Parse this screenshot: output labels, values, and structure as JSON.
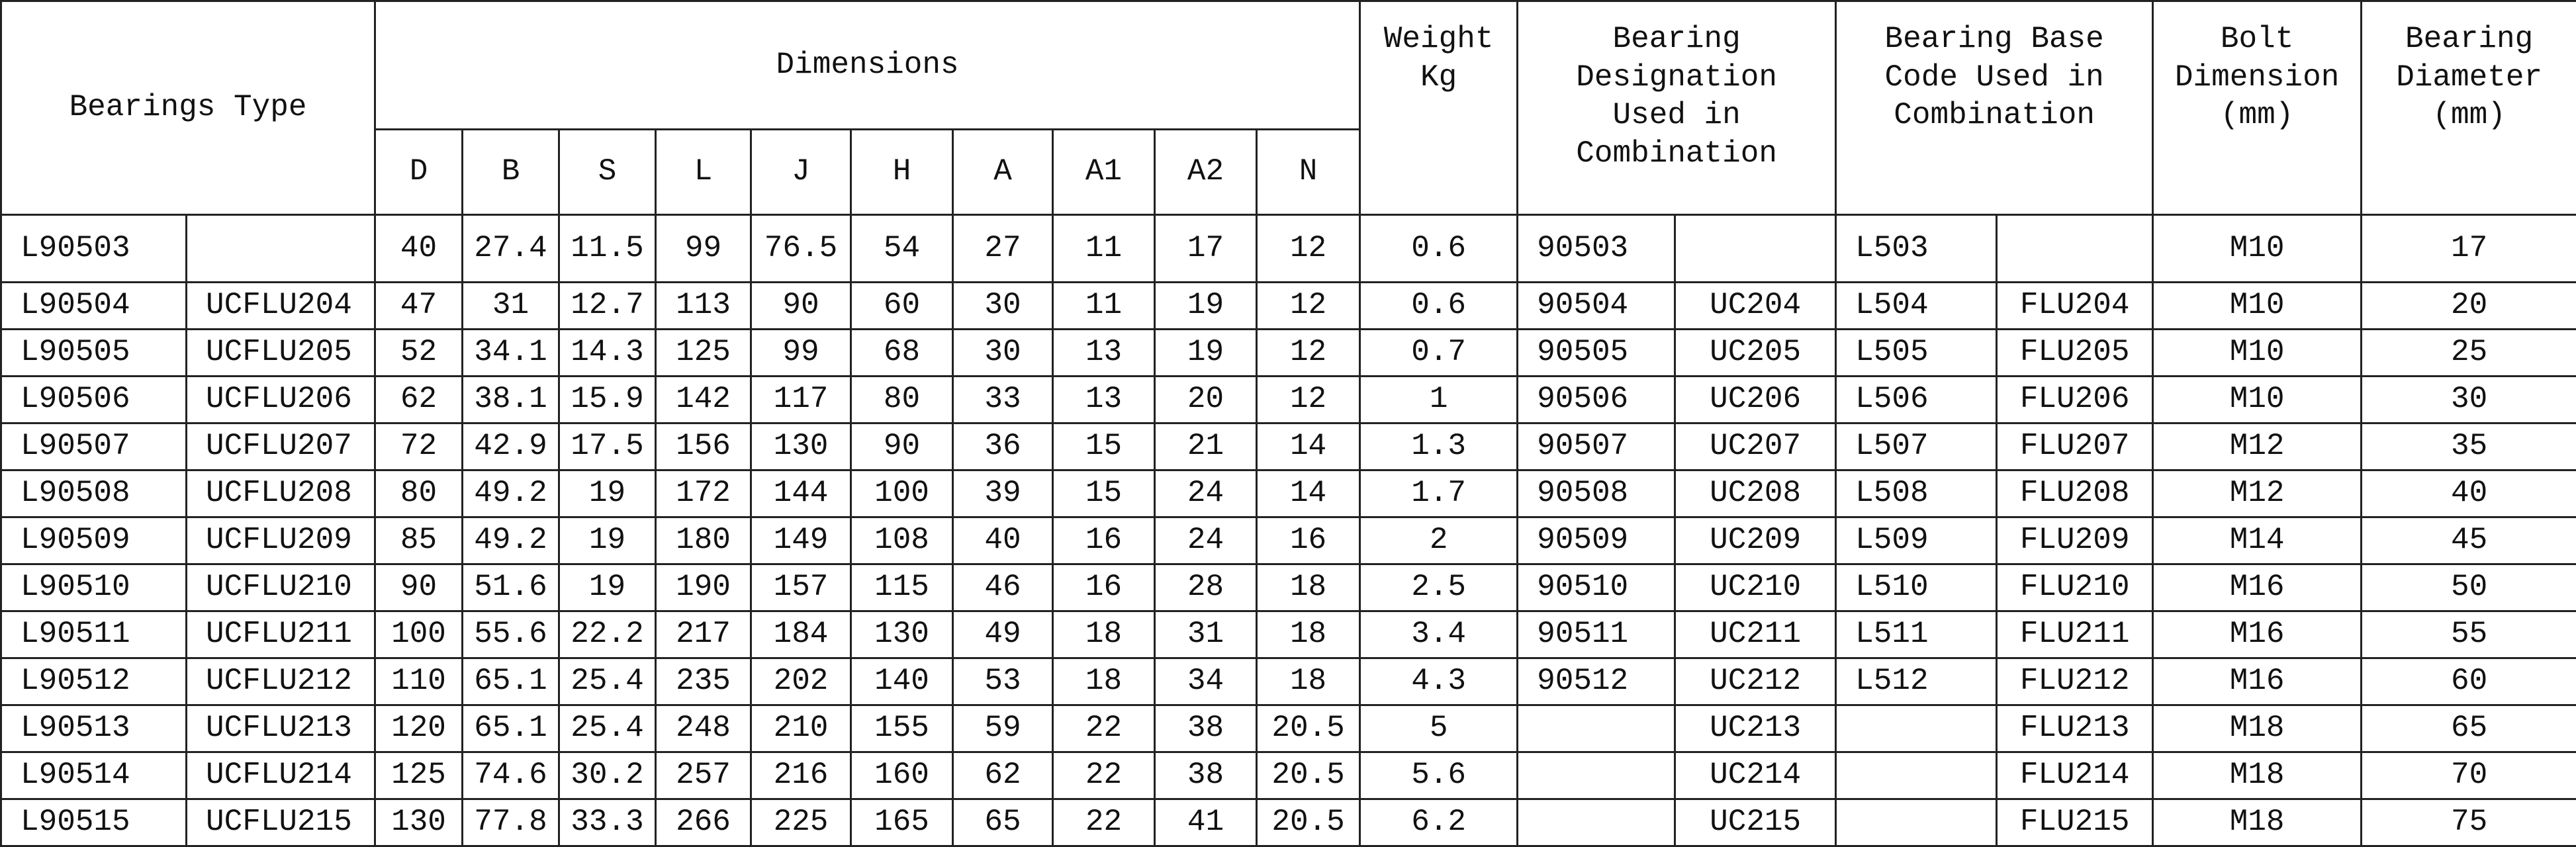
{
  "header": {
    "bearings_type": "Bearings Type",
    "dimensions": "Dimensions",
    "dimension_columns": [
      "D",
      "B",
      "S",
      "L",
      "J",
      "H",
      "A",
      "A1",
      "A2",
      "N"
    ],
    "weight": "Weight\nKg",
    "designation": "Bearing\nDesignation\nUsed in\nCombination",
    "base_code": "Bearing Base\nCode Used in\nCombination",
    "bolt": "Bolt\nDimension\n(mm)",
    "diameter": "Bearing\nDiameter\n(mm)"
  },
  "table": {
    "rows": [
      [
        "L90503",
        null,
        "40",
        "27.4",
        "11.5",
        "99",
        "76.5",
        "54",
        "27",
        "11",
        "17",
        "12",
        "0.6",
        "90503",
        null,
        "L503",
        null,
        "M10",
        "17"
      ],
      [
        "L90504",
        "UCFLU204",
        "47",
        "31",
        "12.7",
        "113",
        "90",
        "60",
        "30",
        "11",
        "19",
        "12",
        "0.6",
        "90504",
        "UC204",
        "L504",
        "FLU204",
        "M10",
        "20"
      ],
      [
        "L90505",
        "UCFLU205",
        "52",
        "34.1",
        "14.3",
        "125",
        "99",
        "68",
        "30",
        "13",
        "19",
        "12",
        "0.7",
        "90505",
        "UC205",
        "L505",
        "FLU205",
        "M10",
        "25"
      ],
      [
        "L90506",
        "UCFLU206",
        "62",
        "38.1",
        "15.9",
        "142",
        "117",
        "80",
        "33",
        "13",
        "20",
        "12",
        "1",
        "90506",
        "UC206",
        "L506",
        "FLU206",
        "M10",
        "30"
      ],
      [
        "L90507",
        "UCFLU207",
        "72",
        "42.9",
        "17.5",
        "156",
        "130",
        "90",
        "36",
        "15",
        "21",
        "14",
        "1.3",
        "90507",
        "UC207",
        "L507",
        "FLU207",
        "M12",
        "35"
      ],
      [
        "L90508",
        "UCFLU208",
        "80",
        "49.2",
        "19",
        "172",
        "144",
        "100",
        "39",
        "15",
        "24",
        "14",
        "1.7",
        "90508",
        "UC208",
        "L508",
        "FLU208",
        "M12",
        "40"
      ],
      [
        "L90509",
        "UCFLU209",
        "85",
        "49.2",
        "19",
        "180",
        "149",
        "108",
        "40",
        "16",
        "24",
        "16",
        "2",
        "90509",
        "UC209",
        "L509",
        "FLU209",
        "M14",
        "45"
      ],
      [
        "L90510",
        "UCFLU210",
        "90",
        "51.6",
        "19",
        "190",
        "157",
        "115",
        "46",
        "16",
        "28",
        "18",
        "2.5",
        "90510",
        "UC210",
        "L510",
        "FLU210",
        "M16",
        "50"
      ],
      [
        "L90511",
        "UCFLU211",
        "100",
        "55.6",
        "22.2",
        "217",
        "184",
        "130",
        "49",
        "18",
        "31",
        "18",
        "3.4",
        "90511",
        "UC211",
        "L511",
        "FLU211",
        "M16",
        "55"
      ],
      [
        "L90512",
        "UCFLU212",
        "110",
        "65.1",
        "25.4",
        "235",
        "202",
        "140",
        "53",
        "18",
        "34",
        "18",
        "4.3",
        "90512",
        "UC212",
        "L512",
        "FLU212",
        "M16",
        "60"
      ],
      [
        "L90513",
        "UCFLU213",
        "120",
        "65.1",
        "25.4",
        "248",
        "210",
        "155",
        "59",
        "22",
        "38",
        "20.5",
        "5",
        null,
        "UC213",
        null,
        "FLU213",
        "M18",
        "65"
      ],
      [
        "L90514",
        "UCFLU214",
        "125",
        "74.6",
        "30.2",
        "257",
        "216",
        "160",
        "62",
        "22",
        "38",
        "20.5",
        "5.6",
        null,
        "UC214",
        null,
        "FLU214",
        "M18",
        "70"
      ],
      [
        "L90515",
        "UCFLU215",
        "130",
        "77.8",
        "33.3",
        "266",
        "225",
        "165",
        "65",
        "22",
        "41",
        "20.5",
        "6.2",
        null,
        "UC215",
        null,
        "FLU215",
        "M18",
        "75"
      ]
    ]
  }
}
